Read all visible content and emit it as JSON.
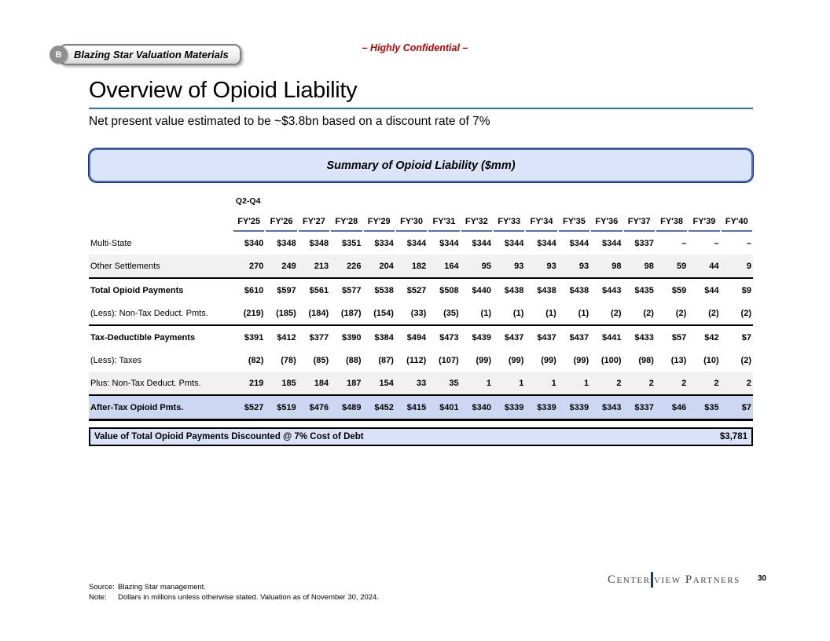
{
  "slide": {
    "badge": {
      "letter": "B",
      "label": "Blazing Star Valuation Materials"
    },
    "confidential": "– Highly Confidential –",
    "title": "Overview of Opioid Liability",
    "subtitle": "Net present value estimated to be ~$3.8bn based on a discount rate of 7%",
    "box_title": "Summary of Opioid Liability ($mm)"
  },
  "chart_data": {
    "type": "table",
    "title": "Summary of Opioid Liability ($mm)",
    "period_label": "Q2-Q4",
    "columns": [
      "FY'25",
      "FY'26",
      "FY'27",
      "FY'28",
      "FY'29",
      "FY'30",
      "FY'31",
      "FY'32",
      "FY'33",
      "FY'34",
      "FY'35",
      "FY'36",
      "FY'37",
      "FY'38",
      "FY'39",
      "FY'40"
    ],
    "rows": [
      {
        "label": "Multi-State",
        "style": "plain",
        "values": [
          "$340",
          "$348",
          "$348",
          "$351",
          "$334",
          "$344",
          "$344",
          "$344",
          "$344",
          "$344",
          "$344",
          "$344",
          "$337",
          "–",
          "–",
          "–"
        ]
      },
      {
        "label": "Other Settlements",
        "style": "stripe",
        "values": [
          "270",
          "249",
          "213",
          "226",
          "204",
          "182",
          "164",
          "95",
          "93",
          "93",
          "93",
          "98",
          "98",
          "59",
          "44",
          "9"
        ]
      },
      {
        "label": "Total Opioid Payments",
        "style": "total",
        "values": [
          "$610",
          "$597",
          "$561",
          "$577",
          "$538",
          "$527",
          "$508",
          "$440",
          "$438",
          "$438",
          "$438",
          "$443",
          "$435",
          "$59",
          "$44",
          "$9"
        ]
      },
      {
        "label": "(Less): Non-Tax Deduct. Pmts.",
        "style": "plain",
        "values": [
          "(219)",
          "(185)",
          "(184)",
          "(187)",
          "(154)",
          "(33)",
          "(35)",
          "(1)",
          "(1)",
          "(1)",
          "(1)",
          "(2)",
          "(2)",
          "(2)",
          "(2)",
          "(2)"
        ]
      },
      {
        "label": "Tax-Deductible Payments",
        "style": "total",
        "values": [
          "$391",
          "$412",
          "$377",
          "$390",
          "$384",
          "$494",
          "$473",
          "$439",
          "$437",
          "$437",
          "$437",
          "$441",
          "$433",
          "$57",
          "$42",
          "$7"
        ]
      },
      {
        "label": "(Less): Taxes",
        "style": "plain",
        "values": [
          "(82)",
          "(78)",
          "(85)",
          "(88)",
          "(87)",
          "(112)",
          "(107)",
          "(99)",
          "(99)",
          "(99)",
          "(99)",
          "(100)",
          "(98)",
          "(13)",
          "(10)",
          "(2)"
        ]
      },
      {
        "label": "Plus: Non-Tax Deduct. Pmts.",
        "style": "stripe",
        "values": [
          "219",
          "185",
          "184",
          "187",
          "154",
          "33",
          "35",
          "1",
          "1",
          "1",
          "1",
          "2",
          "2",
          "2",
          "2",
          "2"
        ]
      },
      {
        "label": "After-Tax Opioid Pmts.",
        "style": "highlight",
        "values": [
          "$527",
          "$519",
          "$476",
          "$489",
          "$452",
          "$415",
          "$401",
          "$340",
          "$339",
          "$339",
          "$339",
          "$343",
          "$337",
          "$46",
          "$35",
          "$7"
        ]
      }
    ]
  },
  "summary_bar": {
    "label": "Value of Total Opioid Payments Discounted @ 7% Cost of Debt",
    "value": "$3,781"
  },
  "footer": {
    "source_label": "Source:",
    "source_text": "Blazing Star management.",
    "note_label": "Note:",
    "note_text": "Dollars in millions unless otherwise stated. Valuation as of November 30, 2024.",
    "logo_part1": "Center",
    "logo_part2": "view Partners",
    "page_number": "30"
  },
  "colors": {
    "accent-blue": "#2E75B6",
    "header-underline-blue": "#4C74C4",
    "box-fill": "#DBE4F8",
    "box-border": "#4470CE",
    "highlight-row": "#CCD8F2",
    "stripe-row": "#F1F1F1",
    "summary-fill": "#D9E2F6",
    "confidential-red": "#C00000",
    "logo-navy": "#1F3864",
    "logo-text": "#3F4654",
    "badge-gray": "#8F8F8F"
  }
}
